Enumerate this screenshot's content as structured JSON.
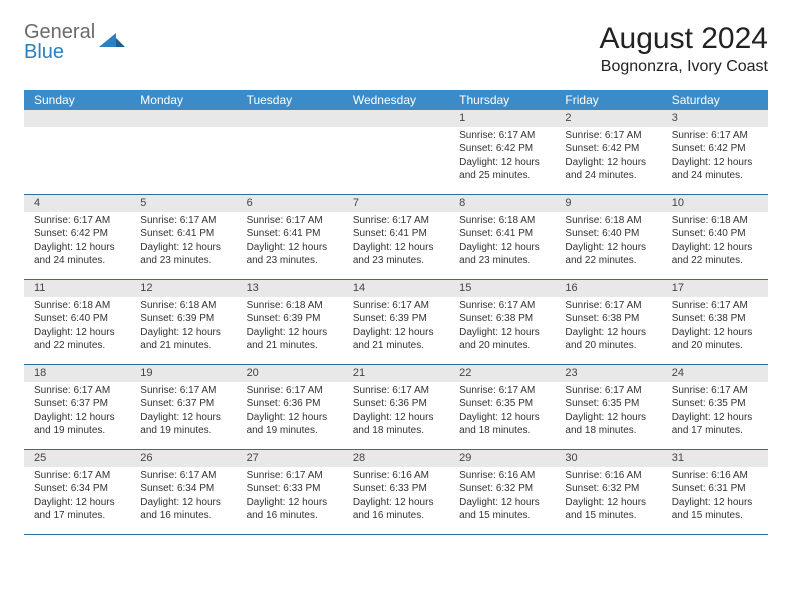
{
  "logo": {
    "general": "General",
    "blue": "Blue"
  },
  "title": "August 2024",
  "location": "Bognonzra, Ivory Coast",
  "colors": {
    "header_bg": "#3b8bc9",
    "header_text": "#ffffff",
    "daynum_bg": "#e8e8e8",
    "row_divider": "#2a6fa1",
    "logo_gray": "#6a6a6a",
    "logo_blue": "#2b7fc3"
  },
  "weekdays": [
    "Sunday",
    "Monday",
    "Tuesday",
    "Wednesday",
    "Thursday",
    "Friday",
    "Saturday"
  ],
  "weeks": [
    [
      null,
      null,
      null,
      null,
      {
        "n": "1",
        "sr": "Sunrise: 6:17 AM",
        "ss": "Sunset: 6:42 PM",
        "dl": "Daylight: 12 hours and 25 minutes."
      },
      {
        "n": "2",
        "sr": "Sunrise: 6:17 AM",
        "ss": "Sunset: 6:42 PM",
        "dl": "Daylight: 12 hours and 24 minutes."
      },
      {
        "n": "3",
        "sr": "Sunrise: 6:17 AM",
        "ss": "Sunset: 6:42 PM",
        "dl": "Daylight: 12 hours and 24 minutes."
      }
    ],
    [
      {
        "n": "4",
        "sr": "Sunrise: 6:17 AM",
        "ss": "Sunset: 6:42 PM",
        "dl": "Daylight: 12 hours and 24 minutes."
      },
      {
        "n": "5",
        "sr": "Sunrise: 6:17 AM",
        "ss": "Sunset: 6:41 PM",
        "dl": "Daylight: 12 hours and 23 minutes."
      },
      {
        "n": "6",
        "sr": "Sunrise: 6:17 AM",
        "ss": "Sunset: 6:41 PM",
        "dl": "Daylight: 12 hours and 23 minutes."
      },
      {
        "n": "7",
        "sr": "Sunrise: 6:17 AM",
        "ss": "Sunset: 6:41 PM",
        "dl": "Daylight: 12 hours and 23 minutes."
      },
      {
        "n": "8",
        "sr": "Sunrise: 6:18 AM",
        "ss": "Sunset: 6:41 PM",
        "dl": "Daylight: 12 hours and 23 minutes."
      },
      {
        "n": "9",
        "sr": "Sunrise: 6:18 AM",
        "ss": "Sunset: 6:40 PM",
        "dl": "Daylight: 12 hours and 22 minutes."
      },
      {
        "n": "10",
        "sr": "Sunrise: 6:18 AM",
        "ss": "Sunset: 6:40 PM",
        "dl": "Daylight: 12 hours and 22 minutes."
      }
    ],
    [
      {
        "n": "11",
        "sr": "Sunrise: 6:18 AM",
        "ss": "Sunset: 6:40 PM",
        "dl": "Daylight: 12 hours and 22 minutes."
      },
      {
        "n": "12",
        "sr": "Sunrise: 6:18 AM",
        "ss": "Sunset: 6:39 PM",
        "dl": "Daylight: 12 hours and 21 minutes."
      },
      {
        "n": "13",
        "sr": "Sunrise: 6:18 AM",
        "ss": "Sunset: 6:39 PM",
        "dl": "Daylight: 12 hours and 21 minutes."
      },
      {
        "n": "14",
        "sr": "Sunrise: 6:17 AM",
        "ss": "Sunset: 6:39 PM",
        "dl": "Daylight: 12 hours and 21 minutes."
      },
      {
        "n": "15",
        "sr": "Sunrise: 6:17 AM",
        "ss": "Sunset: 6:38 PM",
        "dl": "Daylight: 12 hours and 20 minutes."
      },
      {
        "n": "16",
        "sr": "Sunrise: 6:17 AM",
        "ss": "Sunset: 6:38 PM",
        "dl": "Daylight: 12 hours and 20 minutes."
      },
      {
        "n": "17",
        "sr": "Sunrise: 6:17 AM",
        "ss": "Sunset: 6:38 PM",
        "dl": "Daylight: 12 hours and 20 minutes."
      }
    ],
    [
      {
        "n": "18",
        "sr": "Sunrise: 6:17 AM",
        "ss": "Sunset: 6:37 PM",
        "dl": "Daylight: 12 hours and 19 minutes."
      },
      {
        "n": "19",
        "sr": "Sunrise: 6:17 AM",
        "ss": "Sunset: 6:37 PM",
        "dl": "Daylight: 12 hours and 19 minutes."
      },
      {
        "n": "20",
        "sr": "Sunrise: 6:17 AM",
        "ss": "Sunset: 6:36 PM",
        "dl": "Daylight: 12 hours and 19 minutes."
      },
      {
        "n": "21",
        "sr": "Sunrise: 6:17 AM",
        "ss": "Sunset: 6:36 PM",
        "dl": "Daylight: 12 hours and 18 minutes."
      },
      {
        "n": "22",
        "sr": "Sunrise: 6:17 AM",
        "ss": "Sunset: 6:35 PM",
        "dl": "Daylight: 12 hours and 18 minutes."
      },
      {
        "n": "23",
        "sr": "Sunrise: 6:17 AM",
        "ss": "Sunset: 6:35 PM",
        "dl": "Daylight: 12 hours and 18 minutes."
      },
      {
        "n": "24",
        "sr": "Sunrise: 6:17 AM",
        "ss": "Sunset: 6:35 PM",
        "dl": "Daylight: 12 hours and 17 minutes."
      }
    ],
    [
      {
        "n": "25",
        "sr": "Sunrise: 6:17 AM",
        "ss": "Sunset: 6:34 PM",
        "dl": "Daylight: 12 hours and 17 minutes."
      },
      {
        "n": "26",
        "sr": "Sunrise: 6:17 AM",
        "ss": "Sunset: 6:34 PM",
        "dl": "Daylight: 12 hours and 16 minutes."
      },
      {
        "n": "27",
        "sr": "Sunrise: 6:17 AM",
        "ss": "Sunset: 6:33 PM",
        "dl": "Daylight: 12 hours and 16 minutes."
      },
      {
        "n": "28",
        "sr": "Sunrise: 6:16 AM",
        "ss": "Sunset: 6:33 PM",
        "dl": "Daylight: 12 hours and 16 minutes."
      },
      {
        "n": "29",
        "sr": "Sunrise: 6:16 AM",
        "ss": "Sunset: 6:32 PM",
        "dl": "Daylight: 12 hours and 15 minutes."
      },
      {
        "n": "30",
        "sr": "Sunrise: 6:16 AM",
        "ss": "Sunset: 6:32 PM",
        "dl": "Daylight: 12 hours and 15 minutes."
      },
      {
        "n": "31",
        "sr": "Sunrise: 6:16 AM",
        "ss": "Sunset: 6:31 PM",
        "dl": "Daylight: 12 hours and 15 minutes."
      }
    ]
  ]
}
